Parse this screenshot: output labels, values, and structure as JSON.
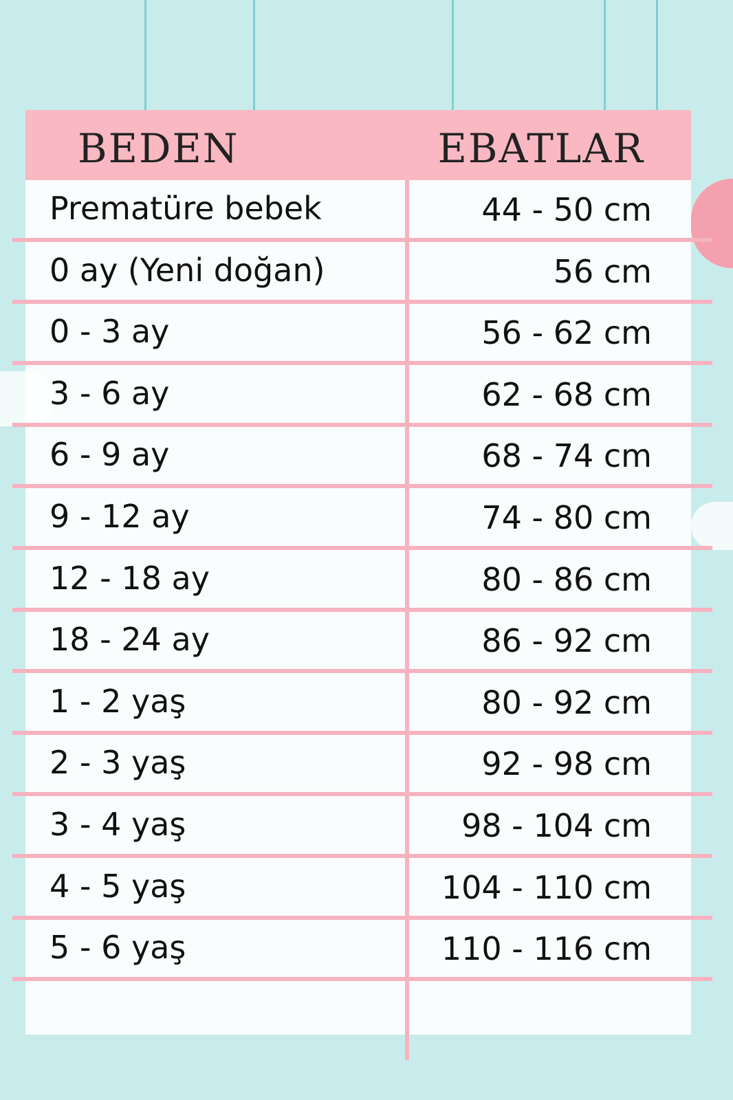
{
  "colors": {
    "background": "#c8ecec",
    "header": "#f9b8c2",
    "lines": "#f6b3bf"
  },
  "header": {
    "size_label": "BEDEN",
    "measure_label": "EBATLAR"
  },
  "rows": [
    {
      "size": "Prematüre bebek",
      "range": "44 - 50 cm"
    },
    {
      "size": "0 ay (Yeni doğan)",
      "range": "56 cm"
    },
    {
      "size": "0 - 3 ay",
      "range": "56 - 62 cm"
    },
    {
      "size": "3 - 6 ay",
      "range": "62 - 68 cm"
    },
    {
      "size": "6 - 9 ay",
      "range": "68 - 74 cm"
    },
    {
      "size": "9 - 12 ay",
      "range": "74 - 80 cm"
    },
    {
      "size": "12 - 18 ay",
      "range": "80 - 86 cm"
    },
    {
      "size": "18 - 24 ay",
      "range": "86 - 92 cm"
    },
    {
      "size": "1 - 2 yaş",
      "range": "80 - 92 cm"
    },
    {
      "size": "2 - 3 yaş",
      "range": "92 - 98 cm"
    },
    {
      "size": "3 - 4 yaş",
      "range": "98 - 104 cm"
    },
    {
      "size": "4 - 5 yaş",
      "range": "104 - 110 cm"
    },
    {
      "size": "5 - 6 yaş",
      "range": "110 - 116 cm"
    }
  ]
}
